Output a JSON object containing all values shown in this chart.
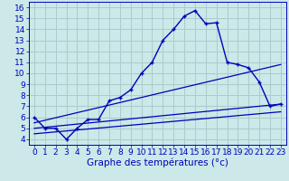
{
  "xlabel": "Graphe des températures (°c)",
  "bg_color": "#cce8e8",
  "grid_color": "#aacccc",
  "line_color": "#0000bb",
  "xlim": [
    -0.5,
    23.5
  ],
  "ylim": [
    3.5,
    16.5
  ],
  "xticks": [
    0,
    1,
    2,
    3,
    4,
    5,
    6,
    7,
    8,
    9,
    10,
    11,
    12,
    13,
    14,
    15,
    16,
    17,
    18,
    19,
    20,
    21,
    22,
    23
  ],
  "yticks": [
    4,
    5,
    6,
    7,
    8,
    9,
    10,
    11,
    12,
    13,
    14,
    15,
    16
  ],
  "line1_x": [
    0,
    1,
    2,
    3,
    4,
    5,
    6,
    7,
    8,
    9,
    10,
    11,
    12,
    13,
    14,
    15,
    16,
    17,
    18,
    19,
    20,
    21,
    22,
    23
  ],
  "line1_y": [
    6.0,
    5.0,
    5.0,
    4.0,
    5.0,
    5.8,
    5.8,
    7.5,
    7.8,
    8.5,
    10.0,
    11.0,
    13.0,
    14.0,
    15.2,
    15.7,
    14.5,
    14.6,
    11.0,
    10.8,
    10.5,
    9.2,
    7.0,
    7.2
  ],
  "line2_x": [
    0,
    23
  ],
  "line2_y": [
    5.5,
    10.8
  ],
  "line3_x": [
    0,
    23
  ],
  "line3_y": [
    5.0,
    7.2
  ],
  "line4_x": [
    0,
    23
  ],
  "line4_y": [
    4.5,
    6.5
  ],
  "tick_fontsize": 6.5,
  "xlabel_fontsize": 7.5
}
